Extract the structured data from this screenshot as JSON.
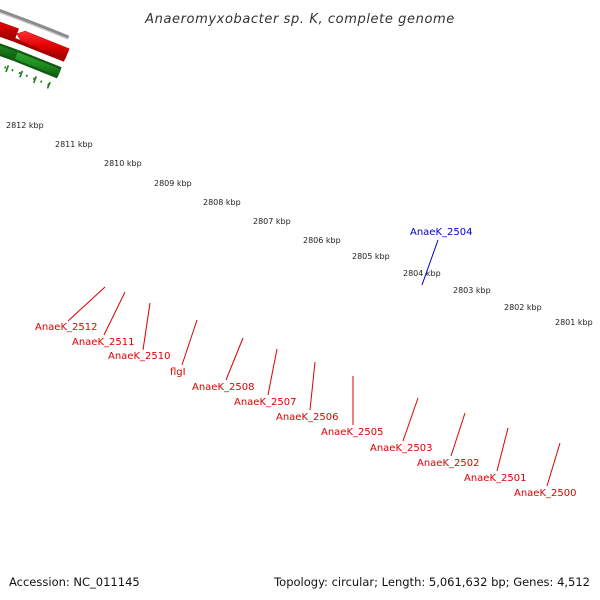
{
  "title": "Anaeromyxobacter sp. K, complete genome",
  "footer": {
    "accession": "Accession: NC_011145",
    "summary": "Topology: circular; Length: 5,061,632 bp; Genes: 4,512"
  },
  "scale_labels": [
    "2812 kbp",
    "2811 kbp",
    "2810 kbp",
    "2809 kbp",
    "2808 kbp",
    "2807 kbp",
    "2806 kbp",
    "2805 kbp",
    "2804 kbp",
    "2803 kbp",
    "2802 kbp",
    "2801 kbp"
  ],
  "gene_labels": [
    {
      "name": "AnaeK_2512",
      "color": "#dd0000"
    },
    {
      "name": "AnaeK_2511",
      "color": "#dd0000"
    },
    {
      "name": "AnaeK_2510",
      "color": "#dd0000"
    },
    {
      "name": "flgI",
      "color": "#dd0000"
    },
    {
      "name": "AnaeK_2508",
      "color": "#dd0000"
    },
    {
      "name": "AnaeK_2507",
      "color": "#dd0000"
    },
    {
      "name": "AnaeK_2506",
      "color": "#dd0000"
    },
    {
      "name": "AnaeK_2505",
      "color": "#dd0000"
    },
    {
      "name": "AnaeK_2504",
      "color": "#0000cc"
    },
    {
      "name": "AnaeK_2503",
      "color": "#dd0000"
    },
    {
      "name": "AnaeK_2502",
      "color": "#dd0000"
    },
    {
      "name": "AnaeK_2501",
      "color": "#dd0000"
    },
    {
      "name": "AnaeK_2500",
      "color": "#dd0000"
    }
  ],
  "colors": {
    "backbone": "#8c8c8c",
    "forward_gene": "#e60000",
    "reverse_gene": "#1f8a1f",
    "highlight_gene": "#0000dd",
    "orange_gene": "#f08c00",
    "pale_gene": "#f2e6a0",
    "olive_gene": "#7a8a1a",
    "scale_dots": "#1f7a1f",
    "ticks": "#1f7a1f"
  }
}
